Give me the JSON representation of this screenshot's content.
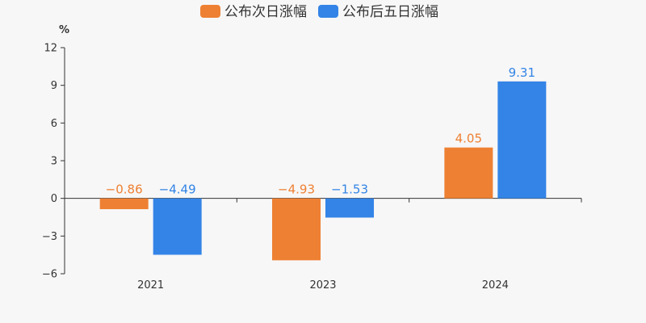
{
  "chart_data": {
    "type": "bar",
    "categories": [
      "2021",
      "2023",
      "2024"
    ],
    "series": [
      {
        "name": "公布次日涨幅",
        "color": "#ee8033",
        "values": [
          -0.86,
          -4.93,
          4.05
        ],
        "labels": [
          "−0.86",
          "−4.93",
          "4.05"
        ]
      },
      {
        "name": "公布后五日涨幅",
        "color": "#3384e6",
        "values": [
          -4.49,
          -1.53,
          9.31
        ],
        "labels": [
          "−4.49",
          "−1.53",
          "9.31"
        ]
      }
    ],
    "y_unit": "%",
    "ylim": [
      -6,
      12
    ],
    "y_ticks": [
      12,
      9,
      6,
      3,
      0,
      -3,
      -6
    ],
    "y_tick_labels": [
      "12",
      "9",
      "6",
      "3",
      "0",
      "−3",
      "−6"
    ],
    "grid": false,
    "legend_position": "top-center"
  }
}
